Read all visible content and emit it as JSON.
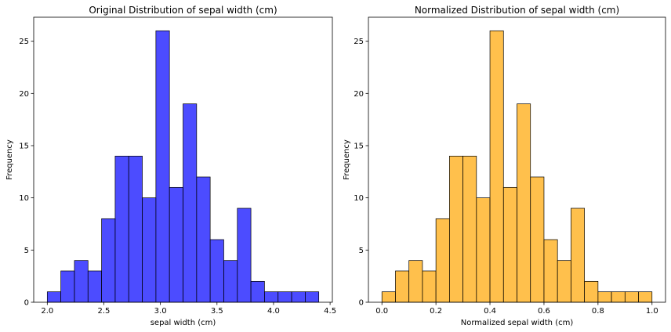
{
  "chart_data": [
    {
      "type": "bar",
      "title": "Original Distribution of sepal width (cm)",
      "xlabel": "sepal width (cm)",
      "ylabel": "Frequency",
      "color": "#0000ff",
      "bar_alpha": 0.7,
      "bin_edges": [
        2.0,
        2.12,
        2.24,
        2.36,
        2.48,
        2.6,
        2.72,
        2.84,
        2.96,
        3.08,
        3.2,
        3.32,
        3.44,
        3.56,
        3.68,
        3.8,
        3.92,
        4.04,
        4.16,
        4.28,
        4.4
      ],
      "values": [
        1,
        3,
        4,
        3,
        8,
        14,
        14,
        10,
        26,
        11,
        19,
        12,
        6,
        4,
        9,
        2,
        1,
        1,
        1,
        1
      ],
      "xlim": [
        1.88,
        4.52
      ],
      "ylim": [
        0,
        27.3
      ],
      "xticks": [
        2.0,
        2.5,
        3.0,
        3.5,
        4.0,
        4.5
      ],
      "xtick_labels": [
        "2.0",
        "2.5",
        "3.0",
        "3.5",
        "4.0",
        "4.5"
      ],
      "yticks": [
        0,
        5,
        10,
        15,
        20,
        25
      ],
      "ytick_labels": [
        "0",
        "5",
        "10",
        "15",
        "20",
        "25"
      ]
    },
    {
      "type": "bar",
      "title": "Normalized Distribution of sepal width (cm)",
      "xlabel": "Normalized sepal width (cm)",
      "ylabel": "Frequency",
      "color": "#ffa500",
      "bar_alpha": 0.7,
      "bin_edges": [
        0.0,
        0.05,
        0.1,
        0.15,
        0.2,
        0.25,
        0.3,
        0.35,
        0.4,
        0.45,
        0.5,
        0.55,
        0.6,
        0.65,
        0.7,
        0.75,
        0.8,
        0.85,
        0.9,
        0.95,
        1.0
      ],
      "values": [
        1,
        3,
        4,
        3,
        8,
        14,
        14,
        10,
        26,
        11,
        19,
        12,
        6,
        4,
        9,
        2,
        1,
        1,
        1,
        1
      ],
      "xlim": [
        -0.05,
        1.05
      ],
      "ylim": [
        0,
        27.3
      ],
      "xticks": [
        0.0,
        0.2,
        0.4,
        0.6,
        0.8,
        1.0
      ],
      "xtick_labels": [
        "0.0",
        "0.2",
        "0.4",
        "0.6",
        "0.8",
        "1.0"
      ],
      "yticks": [
        0,
        5,
        10,
        15,
        20,
        25
      ],
      "ytick_labels": [
        "0",
        "5",
        "10",
        "15",
        "20",
        "25"
      ]
    }
  ]
}
